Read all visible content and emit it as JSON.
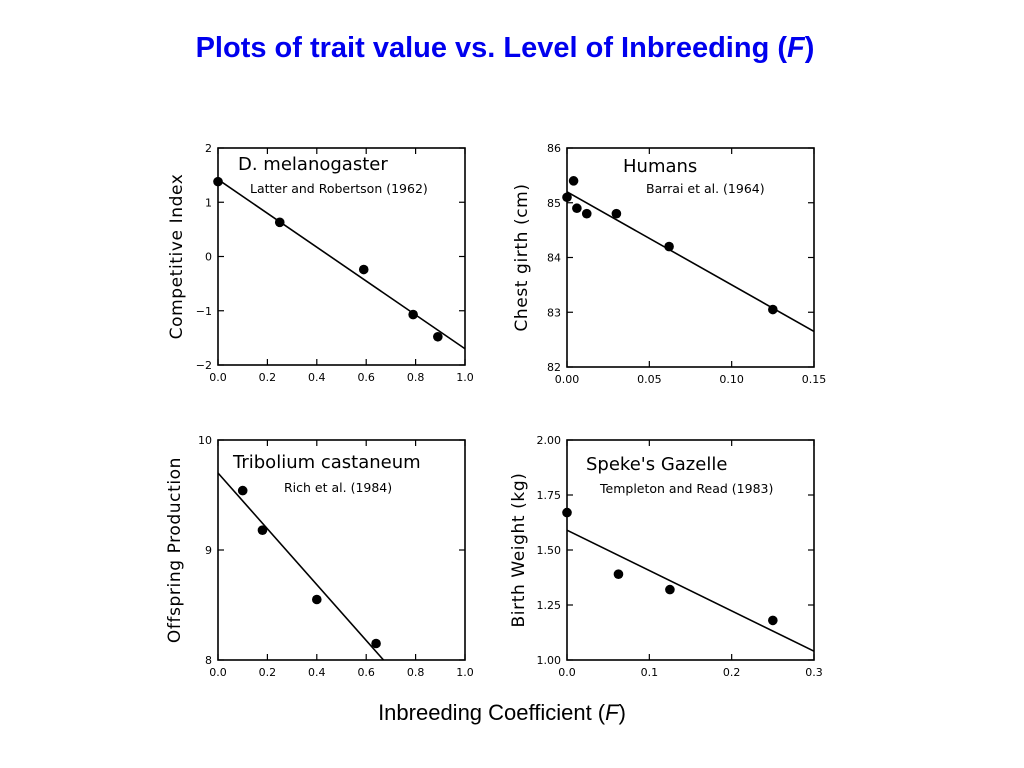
{
  "slide": {
    "title_main": "Plots of trait value vs. Level of Inbreeding (",
    "title_italic": "F",
    "title_end": ")",
    "xcaption_main": "Inbreeding Coefficient (",
    "xcaption_italic": "F",
    "xcaption_end": ")"
  },
  "chart_data": [
    {
      "type": "scatter",
      "title": "D. melanogaster",
      "subtitle": "Latter and Robertson (1962)",
      "xlabel": "",
      "ylabel": "Competitive Index",
      "xlim": [
        0,
        1.0
      ],
      "ylim": [
        -2,
        2
      ],
      "xticks": [
        "0.0",
        "0.2",
        "0.4",
        "0.6",
        "0.8",
        "1.0"
      ],
      "yticks": [
        "2",
        "1",
        "0",
        "−1",
        "−2"
      ],
      "points": [
        {
          "x": 0.0,
          "y": 1.38
        },
        {
          "x": 0.25,
          "y": 0.63
        },
        {
          "x": 0.59,
          "y": -0.24
        },
        {
          "x": 0.79,
          "y": -1.07
        },
        {
          "x": 0.89,
          "y": -1.48
        }
      ],
      "fit_line": [
        {
          "x": 0.0,
          "y": 1.42
        },
        {
          "x": 1.0,
          "y": -1.7
        }
      ],
      "grid": false
    },
    {
      "type": "scatter",
      "title": "Humans",
      "subtitle": "Barrai et al. (1964)",
      "xlabel": "",
      "ylabel": "Chest girth (cm)",
      "xlim": [
        0,
        0.15
      ],
      "ylim": [
        82,
        86
      ],
      "xticks": [
        "0.00",
        "0.05",
        "0.10",
        "0.15"
      ],
      "yticks": [
        "86",
        "85",
        "84",
        "83",
        "82"
      ],
      "points": [
        {
          "x": 0.0,
          "y": 85.1
        },
        {
          "x": 0.004,
          "y": 85.4
        },
        {
          "x": 0.006,
          "y": 84.9
        },
        {
          "x": 0.012,
          "y": 84.8
        },
        {
          "x": 0.03,
          "y": 84.8
        },
        {
          "x": 0.062,
          "y": 84.2
        },
        {
          "x": 0.125,
          "y": 83.05
        }
      ],
      "fit_line": [
        {
          "x": 0.0,
          "y": 85.2
        },
        {
          "x": 0.15,
          "y": 82.65
        }
      ],
      "grid": false
    },
    {
      "type": "scatter",
      "title": "Tribolium castaneum",
      "subtitle": "Rich et al. (1984)",
      "xlabel": "",
      "ylabel": "Offspring Production",
      "xlim": [
        0,
        1.0
      ],
      "ylim": [
        8,
        10
      ],
      "xticks": [
        "0.0",
        "0.2",
        "0.4",
        "0.6",
        "0.8",
        "1.0"
      ],
      "yticks": [
        "10",
        "9",
        "8"
      ],
      "points": [
        {
          "x": 0.1,
          "y": 9.54
        },
        {
          "x": 0.18,
          "y": 9.18
        },
        {
          "x": 0.4,
          "y": 8.55
        },
        {
          "x": 0.64,
          "y": 8.15
        }
      ],
      "fit_line": [
        {
          "x": 0.0,
          "y": 9.7
        },
        {
          "x": 0.67,
          "y": 8.0
        }
      ],
      "grid": false
    },
    {
      "type": "scatter",
      "title": "Speke's Gazelle",
      "subtitle": "Templeton and Read (1983)",
      "xlabel": "",
      "ylabel": "Birth Weight (kg)",
      "xlim": [
        0,
        0.3
      ],
      "ylim": [
        1.0,
        2.0
      ],
      "xticks": [
        "0.0",
        "0.1",
        "0.2",
        "0.3"
      ],
      "yticks": [
        "2.00",
        "1.75",
        "1.50",
        "1.25",
        "1.00"
      ],
      "points": [
        {
          "x": 0.0,
          "y": 1.67
        },
        {
          "x": 0.0625,
          "y": 1.39
        },
        {
          "x": 0.125,
          "y": 1.32
        },
        {
          "x": 0.25,
          "y": 1.18
        }
      ],
      "fit_line": [
        {
          "x": 0.0,
          "y": 1.59
        },
        {
          "x": 0.3,
          "y": 1.04
        }
      ],
      "grid": false
    }
  ]
}
